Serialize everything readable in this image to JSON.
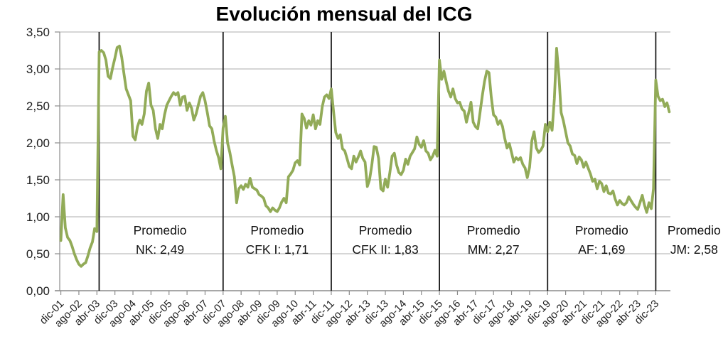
{
  "chart_data": {
    "type": "line",
    "title": "Evolución mensual del ICG",
    "xlabel": "",
    "ylabel": "",
    "x_start": "dic-01",
    "x_end": "jun-24",
    "x_frequency": "monthly",
    "n_points": 271,
    "ylim": [
      0,
      3.5
    ],
    "grid": "horizontal",
    "legend": "none",
    "y_ticks": [
      {
        "value": 0.0,
        "label": "0,00"
      },
      {
        "value": 0.5,
        "label": "0,50"
      },
      {
        "value": 1.0,
        "label": "1,00"
      },
      {
        "value": 1.5,
        "label": "1,50"
      },
      {
        "value": 2.0,
        "label": "2,00"
      },
      {
        "value": 2.5,
        "label": "2,50"
      },
      {
        "value": 3.0,
        "label": "3,00"
      },
      {
        "value": 3.5,
        "label": "3,50"
      }
    ],
    "x_ticks": [
      {
        "index": 0,
        "label": "dic-01"
      },
      {
        "index": 8,
        "label": "ago-02"
      },
      {
        "index": 16,
        "label": "abr-03"
      },
      {
        "index": 24,
        "label": "dic-03"
      },
      {
        "index": 32,
        "label": "ago-04"
      },
      {
        "index": 40,
        "label": "abr-05"
      },
      {
        "index": 48,
        "label": "dic-05"
      },
      {
        "index": 56,
        "label": "ago-06"
      },
      {
        "index": 64,
        "label": "abr-07"
      },
      {
        "index": 72,
        "label": "dic-07"
      },
      {
        "index": 80,
        "label": "ago-08"
      },
      {
        "index": 88,
        "label": "abr-09"
      },
      {
        "index": 96,
        "label": "dic-09"
      },
      {
        "index": 104,
        "label": "ago-10"
      },
      {
        "index": 112,
        "label": "abr-11"
      },
      {
        "index": 120,
        "label": "dic-11"
      },
      {
        "index": 128,
        "label": "ago-12"
      },
      {
        "index": 136,
        "label": "abr-13"
      },
      {
        "index": 144,
        "label": "dic-13"
      },
      {
        "index": 152,
        "label": "ago-14"
      },
      {
        "index": 160,
        "label": "abr-15"
      },
      {
        "index": 168,
        "label": "dic-15"
      },
      {
        "index": 176,
        "label": "ago-16"
      },
      {
        "index": 184,
        "label": "abr-17"
      },
      {
        "index": 192,
        "label": "dic-17"
      },
      {
        "index": 200,
        "label": "ago-18"
      },
      {
        "index": 208,
        "label": "abr-19"
      },
      {
        "index": 216,
        "label": "dic-19"
      },
      {
        "index": 224,
        "label": "ago-20"
      },
      {
        "index": 232,
        "label": "abr-21"
      },
      {
        "index": 240,
        "label": "dic-21"
      },
      {
        "index": 248,
        "label": "ago-22"
      },
      {
        "index": 256,
        "label": "abr-23"
      },
      {
        "index": 264,
        "label": "dic-23"
      }
    ],
    "separator_indices": [
      17,
      72,
      120,
      168,
      216,
      264
    ],
    "annotations": [
      {
        "line1": "Promedio",
        "line2": "NK: 2,49",
        "center_index": 44
      },
      {
        "line1": "Promedio",
        "line2": "CFK I: 1,71",
        "center_index": 96
      },
      {
        "line1": "Promedio",
        "line2": "CFK II: 1,83",
        "center_index": 144
      },
      {
        "line1": "Promedio",
        "line2": "MM: 2,27",
        "center_index": 192
      },
      {
        "line1": "Promedio",
        "line2": "AF: 1,69",
        "center_index": 240
      },
      {
        "line1": "Promedio",
        "line2": "JM: 2,58",
        "center_index": 281
      }
    ],
    "values": [
      0.68,
      1.3,
      0.85,
      0.72,
      0.68,
      0.6,
      0.5,
      0.42,
      0.36,
      0.33,
      0.36,
      0.38,
      0.47,
      0.58,
      0.66,
      0.84,
      0.8,
      3.23,
      3.25,
      3.22,
      3.12,
      2.9,
      2.87,
      3.02,
      3.15,
      3.29,
      3.31,
      3.16,
      2.94,
      2.73,
      2.65,
      2.57,
      2.09,
      2.04,
      2.22,
      2.31,
      2.25,
      2.39,
      2.7,
      2.81,
      2.51,
      2.44,
      2.19,
      2.06,
      2.25,
      2.19,
      2.38,
      2.51,
      2.57,
      2.63,
      2.68,
      2.65,
      2.68,
      2.51,
      2.62,
      2.63,
      2.44,
      2.54,
      2.47,
      2.31,
      2.39,
      2.51,
      2.63,
      2.68,
      2.57,
      2.41,
      2.23,
      2.19,
      2.03,
      1.9,
      1.8,
      1.65,
      2.2,
      2.36,
      2.0,
      1.87,
      1.7,
      1.54,
      1.19,
      1.38,
      1.42,
      1.37,
      1.44,
      1.4,
      1.52,
      1.4,
      1.38,
      1.36,
      1.3,
      1.28,
      1.25,
      1.15,
      1.12,
      1.07,
      1.12,
      1.09,
      1.07,
      1.12,
      1.2,
      1.25,
      1.19,
      1.54,
      1.58,
      1.63,
      1.73,
      1.76,
      1.7,
      2.39,
      2.33,
      2.2,
      2.3,
      2.24,
      2.38,
      2.19,
      2.3,
      2.25,
      2.49,
      2.62,
      2.65,
      2.6,
      2.73,
      2.43,
      2.14,
      2.06,
      2.11,
      1.92,
      1.89,
      1.79,
      1.68,
      1.65,
      1.82,
      1.74,
      1.81,
      1.89,
      1.79,
      1.74,
      1.41,
      1.5,
      1.7,
      1.95,
      1.94,
      1.79,
      1.38,
      1.35,
      1.51,
      1.4,
      1.6,
      1.82,
      1.86,
      1.7,
      1.6,
      1.57,
      1.63,
      1.78,
      1.71,
      1.82,
      1.87,
      1.92,
      2.08,
      1.98,
      1.94,
      2.03,
      1.89,
      1.86,
      1.77,
      1.82,
      1.9,
      1.82,
      3.12,
      2.86,
      2.97,
      2.83,
      2.7,
      2.62,
      2.73,
      2.6,
      2.54,
      2.55,
      2.46,
      2.43,
      2.28,
      2.41,
      2.55,
      2.28,
      2.22,
      2.19,
      2.41,
      2.63,
      2.83,
      2.97,
      2.95,
      2.62,
      2.38,
      2.35,
      2.25,
      2.3,
      2.22,
      2.06,
      1.93,
      1.99,
      1.87,
      1.74,
      1.8,
      1.77,
      1.8,
      1.71,
      1.66,
      1.53,
      1.67,
      2.03,
      2.15,
      1.93,
      1.87,
      1.9,
      1.96,
      2.25,
      2.15,
      2.28,
      2.17,
      2.6,
      3.28,
      2.92,
      2.41,
      2.3,
      2.15,
      2.0,
      1.96,
      1.85,
      1.83,
      1.72,
      1.81,
      1.77,
      1.67,
      1.74,
      1.66,
      1.58,
      1.48,
      1.51,
      1.38,
      1.48,
      1.45,
      1.34,
      1.42,
      1.32,
      1.31,
      1.35,
      1.24,
      1.16,
      1.22,
      1.18,
      1.16,
      1.19,
      1.27,
      1.22,
      1.17,
      1.13,
      1.1,
      1.19,
      1.29,
      1.16,
      1.06,
      1.19,
      1.11,
      1.38,
      2.85,
      2.63,
      2.57,
      2.59,
      2.49,
      2.54,
      2.42
    ],
    "colors": {
      "line": "#92ab58",
      "grid": "#bdbdbd",
      "axis": "#8c8c8c",
      "separator": "#1a1a1a",
      "text": "#1f1f1f",
      "annotation_text": "#111111",
      "background": "#ffffff"
    }
  }
}
